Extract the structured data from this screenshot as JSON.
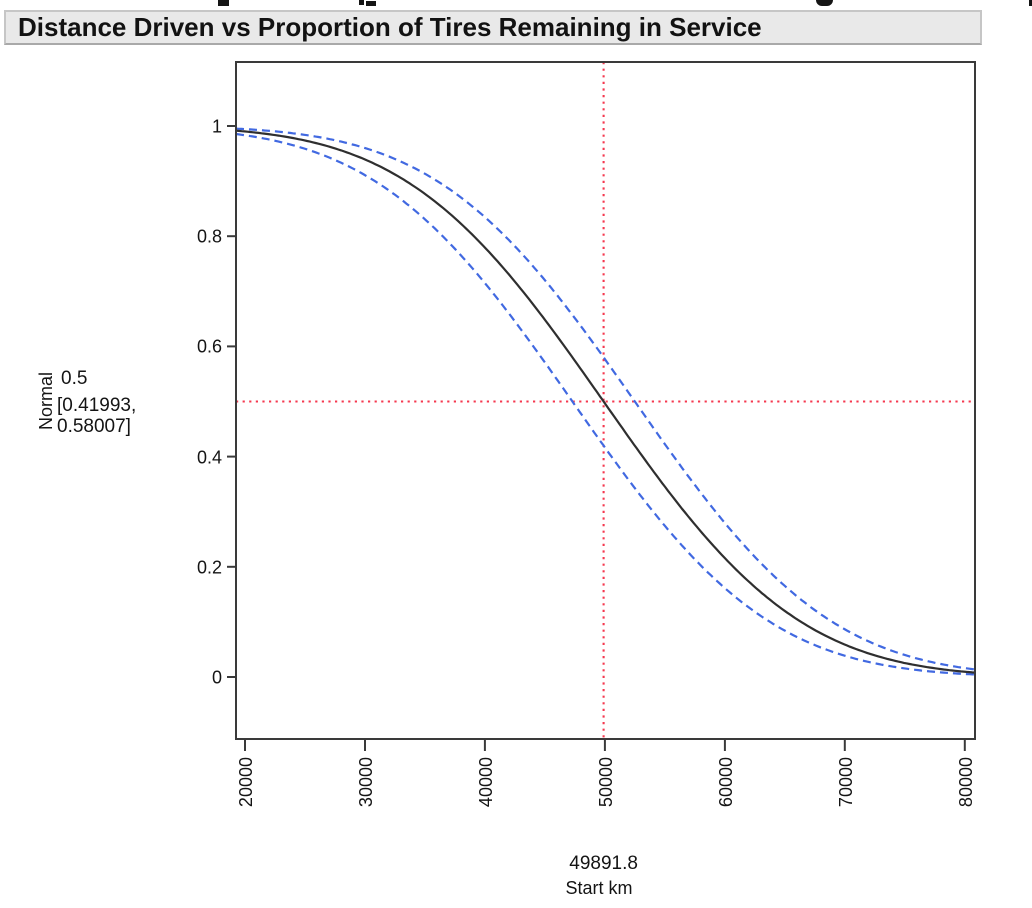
{
  "report": {
    "title": "Distance Driven vs Proportion of Tires Remaining in Service"
  },
  "chart_data": {
    "type": "line",
    "title": "Distance Driven vs Proportion of Tires Remaining in Service",
    "xlabel": "Start km",
    "ylabel": "Normal",
    "xlim": [
      19250,
      80850
    ],
    "ylim": [
      -0.1125,
      1.1161
    ],
    "grid": false,
    "legend": "none",
    "x_ticks": [
      20000,
      30000,
      40000,
      50000,
      60000,
      70000,
      80000
    ],
    "x_tick_labels": [
      "20000",
      "30000",
      "40000",
      "50000",
      "60000",
      "70000",
      "80000"
    ],
    "y_ticks": [
      0,
      0.2,
      0.4,
      0.6,
      0.8,
      1
    ],
    "y_tick_labels": [
      "0",
      "0.2",
      "0.4",
      "0.6",
      "0.8",
      "1"
    ],
    "series": [
      {
        "name": "estimate",
        "model": "normal-survival",
        "mu": 49891.8,
        "sigma": 12850,
        "color": "#2f2f2f",
        "dash": "solid"
      },
      {
        "name": "ci-upper",
        "model": "normal-survival",
        "mu": 52492,
        "sigma": 12850,
        "color": "#4169e1",
        "dash": "dashed"
      },
      {
        "name": "ci-lower",
        "model": "normal-survival",
        "mu": 47292,
        "sigma": 12850,
        "color": "#4169e1",
        "dash": "dashed"
      }
    ],
    "crosshair": {
      "x": 49891.8,
      "y": 0.5,
      "color": "#f5384f",
      "x_value_label": "49891.8",
      "y_value_label": "0.5",
      "y_ci_label_line1": "[0.41993,",
      "y_ci_label_line2": "0.58007]"
    }
  }
}
